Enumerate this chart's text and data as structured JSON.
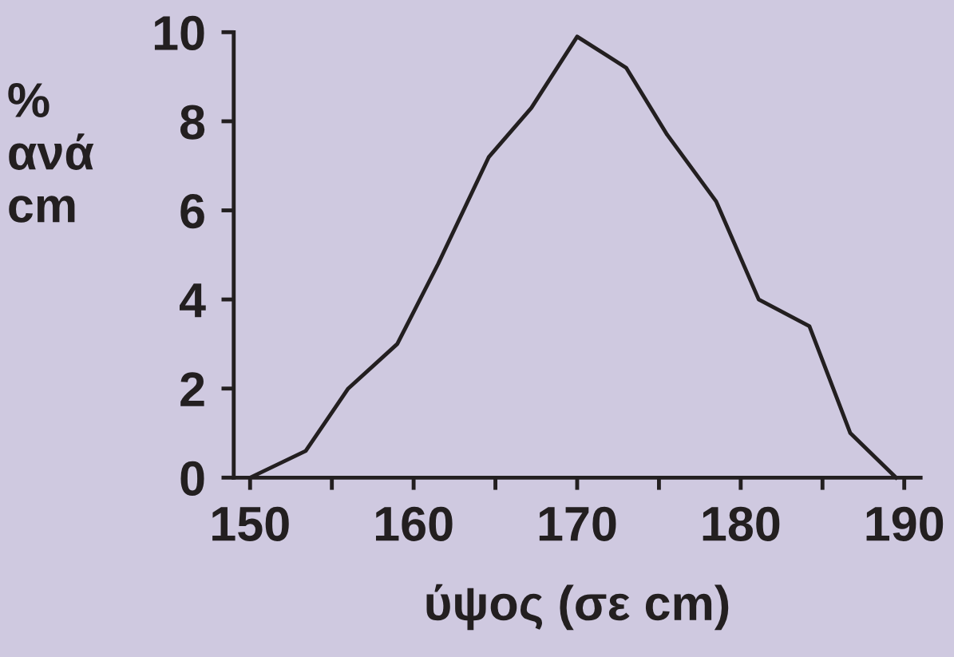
{
  "chart_data": {
    "type": "line",
    "xlabel": "ύψος (σε cm)",
    "ylabel": "%\nανά\ncm",
    "x": [
      150,
      153.4,
      156,
      159,
      161.5,
      164.6,
      167.2,
      170,
      173,
      175.5,
      178.5,
      181.1,
      184.2,
      186.7,
      189.5
    ],
    "series": [
      {
        "color": "#231f20",
        "values": [
          0,
          0.6,
          2.0,
          3.0,
          4.8,
          7.2,
          8.3,
          9.9,
          9.2,
          7.7,
          6.2,
          4.0,
          3.4,
          1.0,
          0
        ]
      }
    ],
    "xlim": [
      149,
      191
    ],
    "ylim": [
      0,
      10
    ],
    "xticks": [
      150,
      {
        "value": 155,
        "label": null
      },
      160,
      {
        "value": 165,
        "label": null
      },
      170,
      {
        "value": 175,
        "label": null
      },
      180,
      {
        "value": 185,
        "label": null
      },
      190
    ],
    "yticks": [
      0,
      2,
      4,
      6,
      8,
      10
    ],
    "grid": false,
    "legend": false,
    "marker": "none",
    "line_style": "solid"
  }
}
